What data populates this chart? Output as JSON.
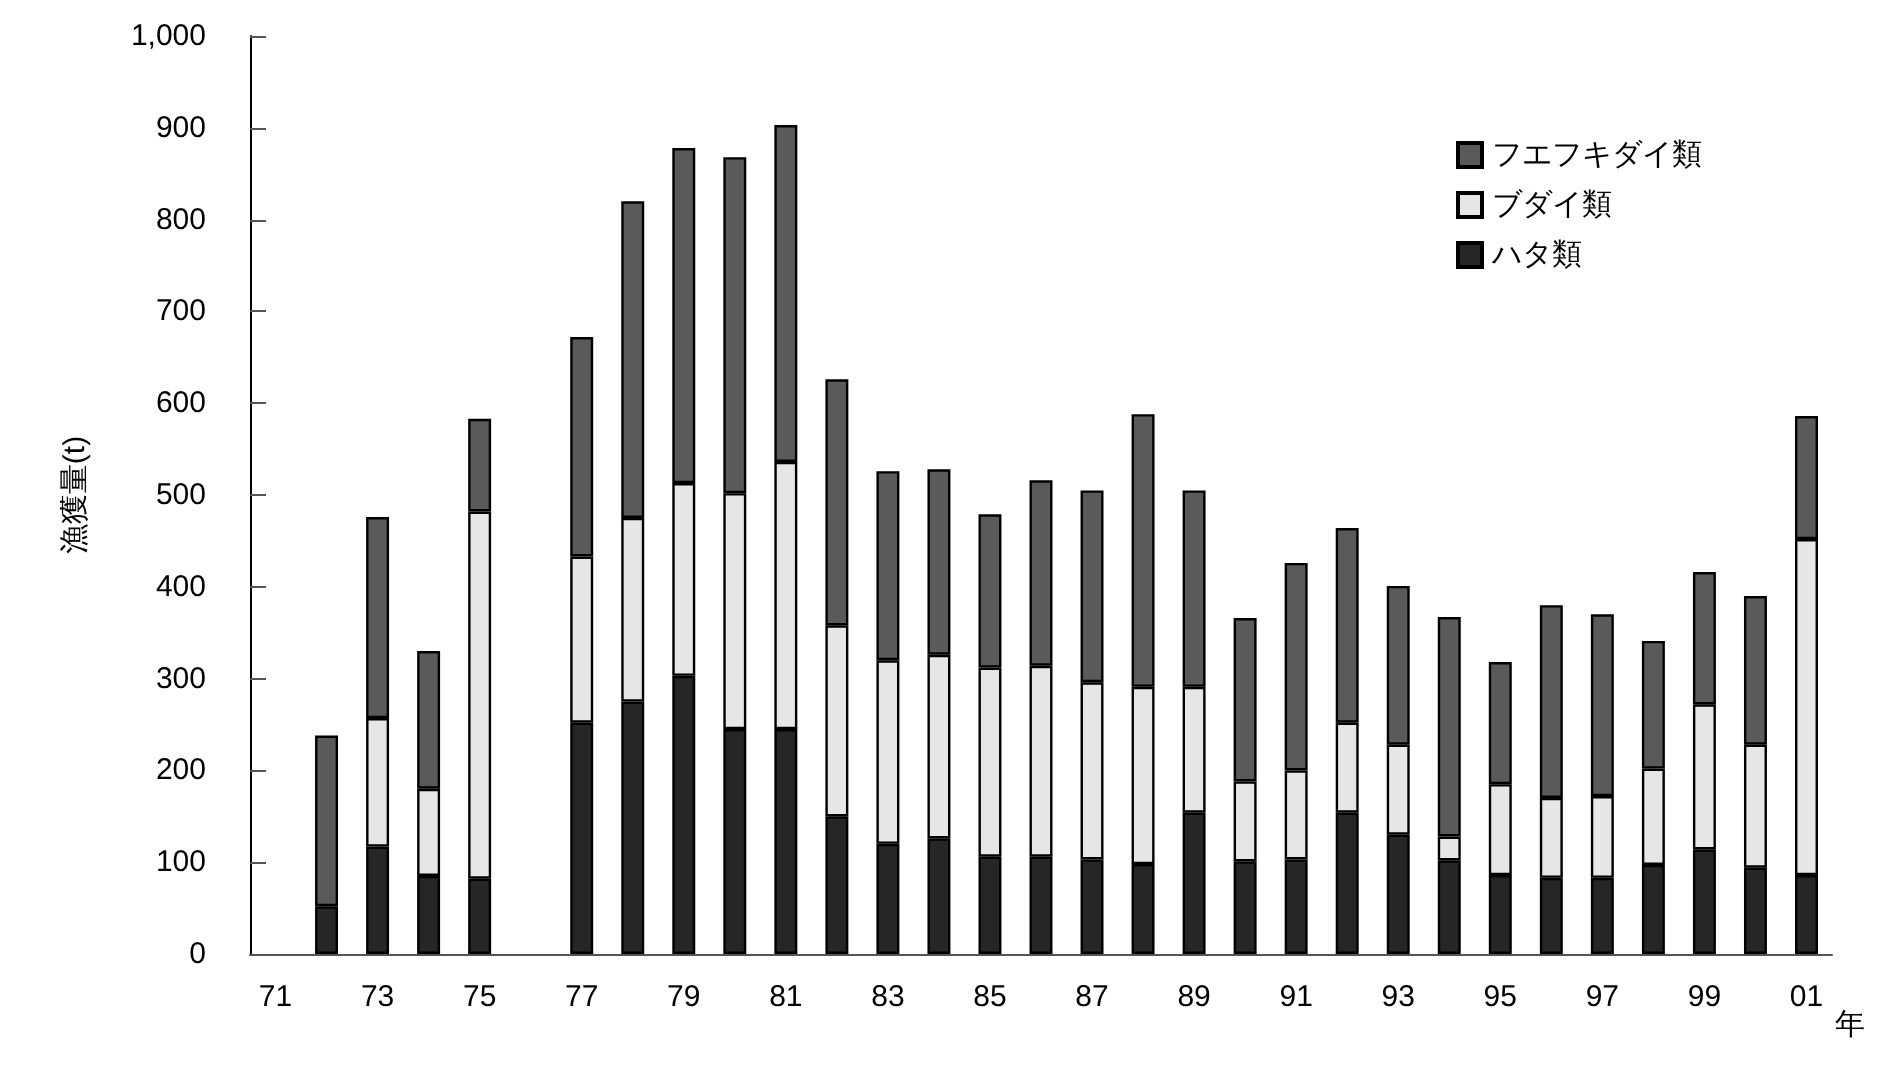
{
  "chart_data": {
    "type": "bar",
    "stacked": true,
    "xlabel": "年",
    "ylabel": "漁獲量(t)",
    "categories": [
      "71",
      null,
      "73",
      null,
      "75",
      null,
      "77",
      null,
      "79",
      null,
      "81",
      null,
      "83",
      null,
      "85",
      null,
      "87",
      null,
      "89",
      null,
      "91",
      null,
      "93",
      null,
      "95",
      null,
      "97",
      null,
      "99",
      null,
      "01"
    ],
    "series": [
      {
        "name": "ハタ類",
        "color": "#262626",
        "values": [
          null,
          52,
          117,
          85,
          82,
          null,
          252,
          275,
          303,
          245,
          245,
          150,
          120,
          126,
          106,
          106,
          103,
          98,
          154,
          101,
          103,
          154,
          130,
          102,
          86,
          83,
          83,
          97,
          114,
          94,
          86
        ]
      },
      {
        "name": "ブダイ類",
        "color": "#e6e6e6",
        "values": [
          null,
          null,
          140,
          95,
          400,
          null,
          181,
          200,
          210,
          257,
          291,
          208,
          200,
          200,
          206,
          208,
          193,
          193,
          137,
          87,
          97,
          98,
          98,
          26,
          99,
          87,
          89,
          105,
          158,
          134,
          366
        ]
      },
      {
        "name": "フエフキダイ類",
        "color": "#5a5a5a",
        "values": [
          null,
          186,
          219,
          150,
          101,
          null,
          239,
          345,
          365,
          366,
          367,
          268,
          206,
          202,
          167,
          202,
          209,
          297,
          214,
          178,
          226,
          212,
          173,
          239,
          133,
          210,
          198,
          139,
          144,
          162,
          134
        ]
      }
    ],
    "ylim": [
      0,
      1000
    ],
    "yticks": [
      0,
      100,
      200,
      300,
      400,
      500,
      600,
      700,
      800,
      900,
      {
        "value": 1000,
        "label": "1,000"
      }
    ],
    "grid": false,
    "legend": "top right"
  }
}
